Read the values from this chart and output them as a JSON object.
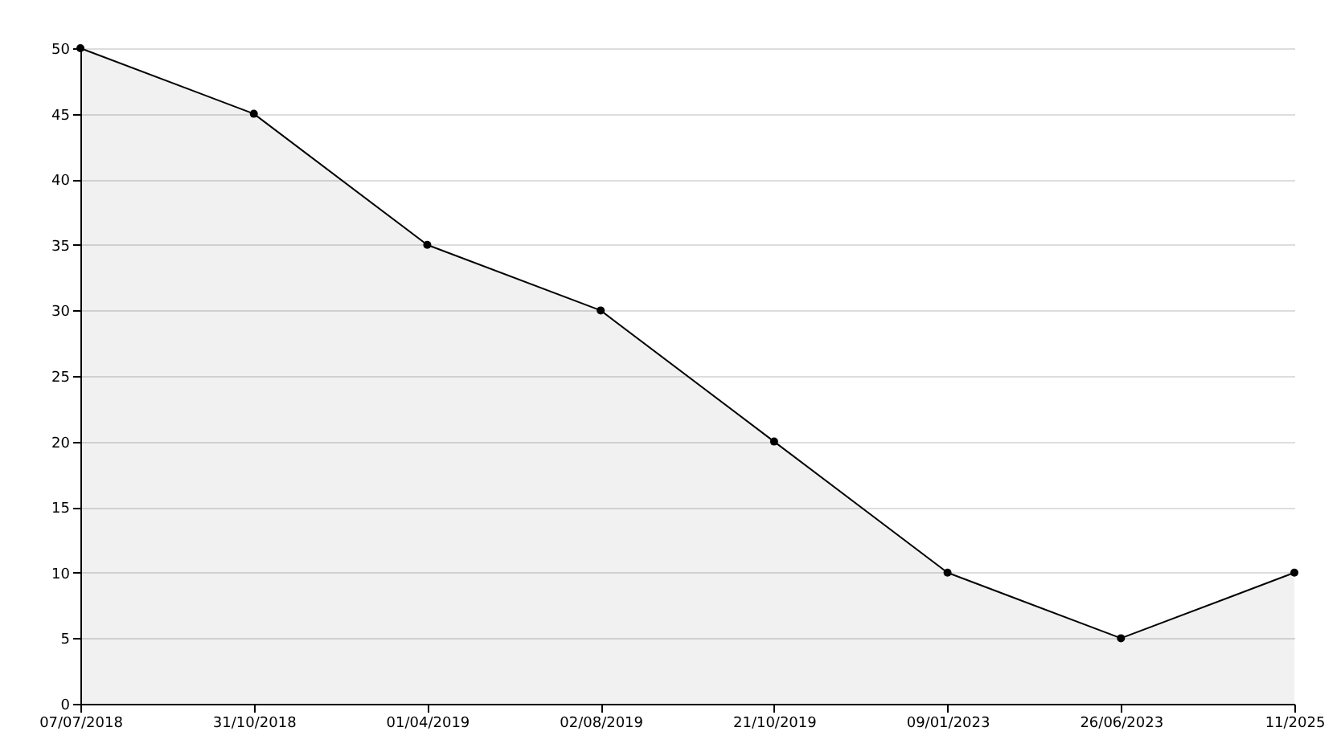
{
  "chart_data": {
    "type": "area",
    "categories": [
      "07/07/2018",
      "31/10/2018",
      "01/04/2019",
      "02/08/2019",
      "21/10/2019",
      "09/01/2023",
      "26/06/2023",
      "11/2025"
    ],
    "series": [
      {
        "color": "#000000",
        "values": [
          50,
          45,
          35,
          30,
          20,
          10,
          5,
          10
        ]
      }
    ],
    "ylim": [
      0,
      50
    ],
    "yticks": [
      0,
      5,
      10,
      15,
      20,
      25,
      30,
      35,
      40,
      45,
      50
    ],
    "grid": "y",
    "marker": "circle",
    "line_style": "solid"
  }
}
